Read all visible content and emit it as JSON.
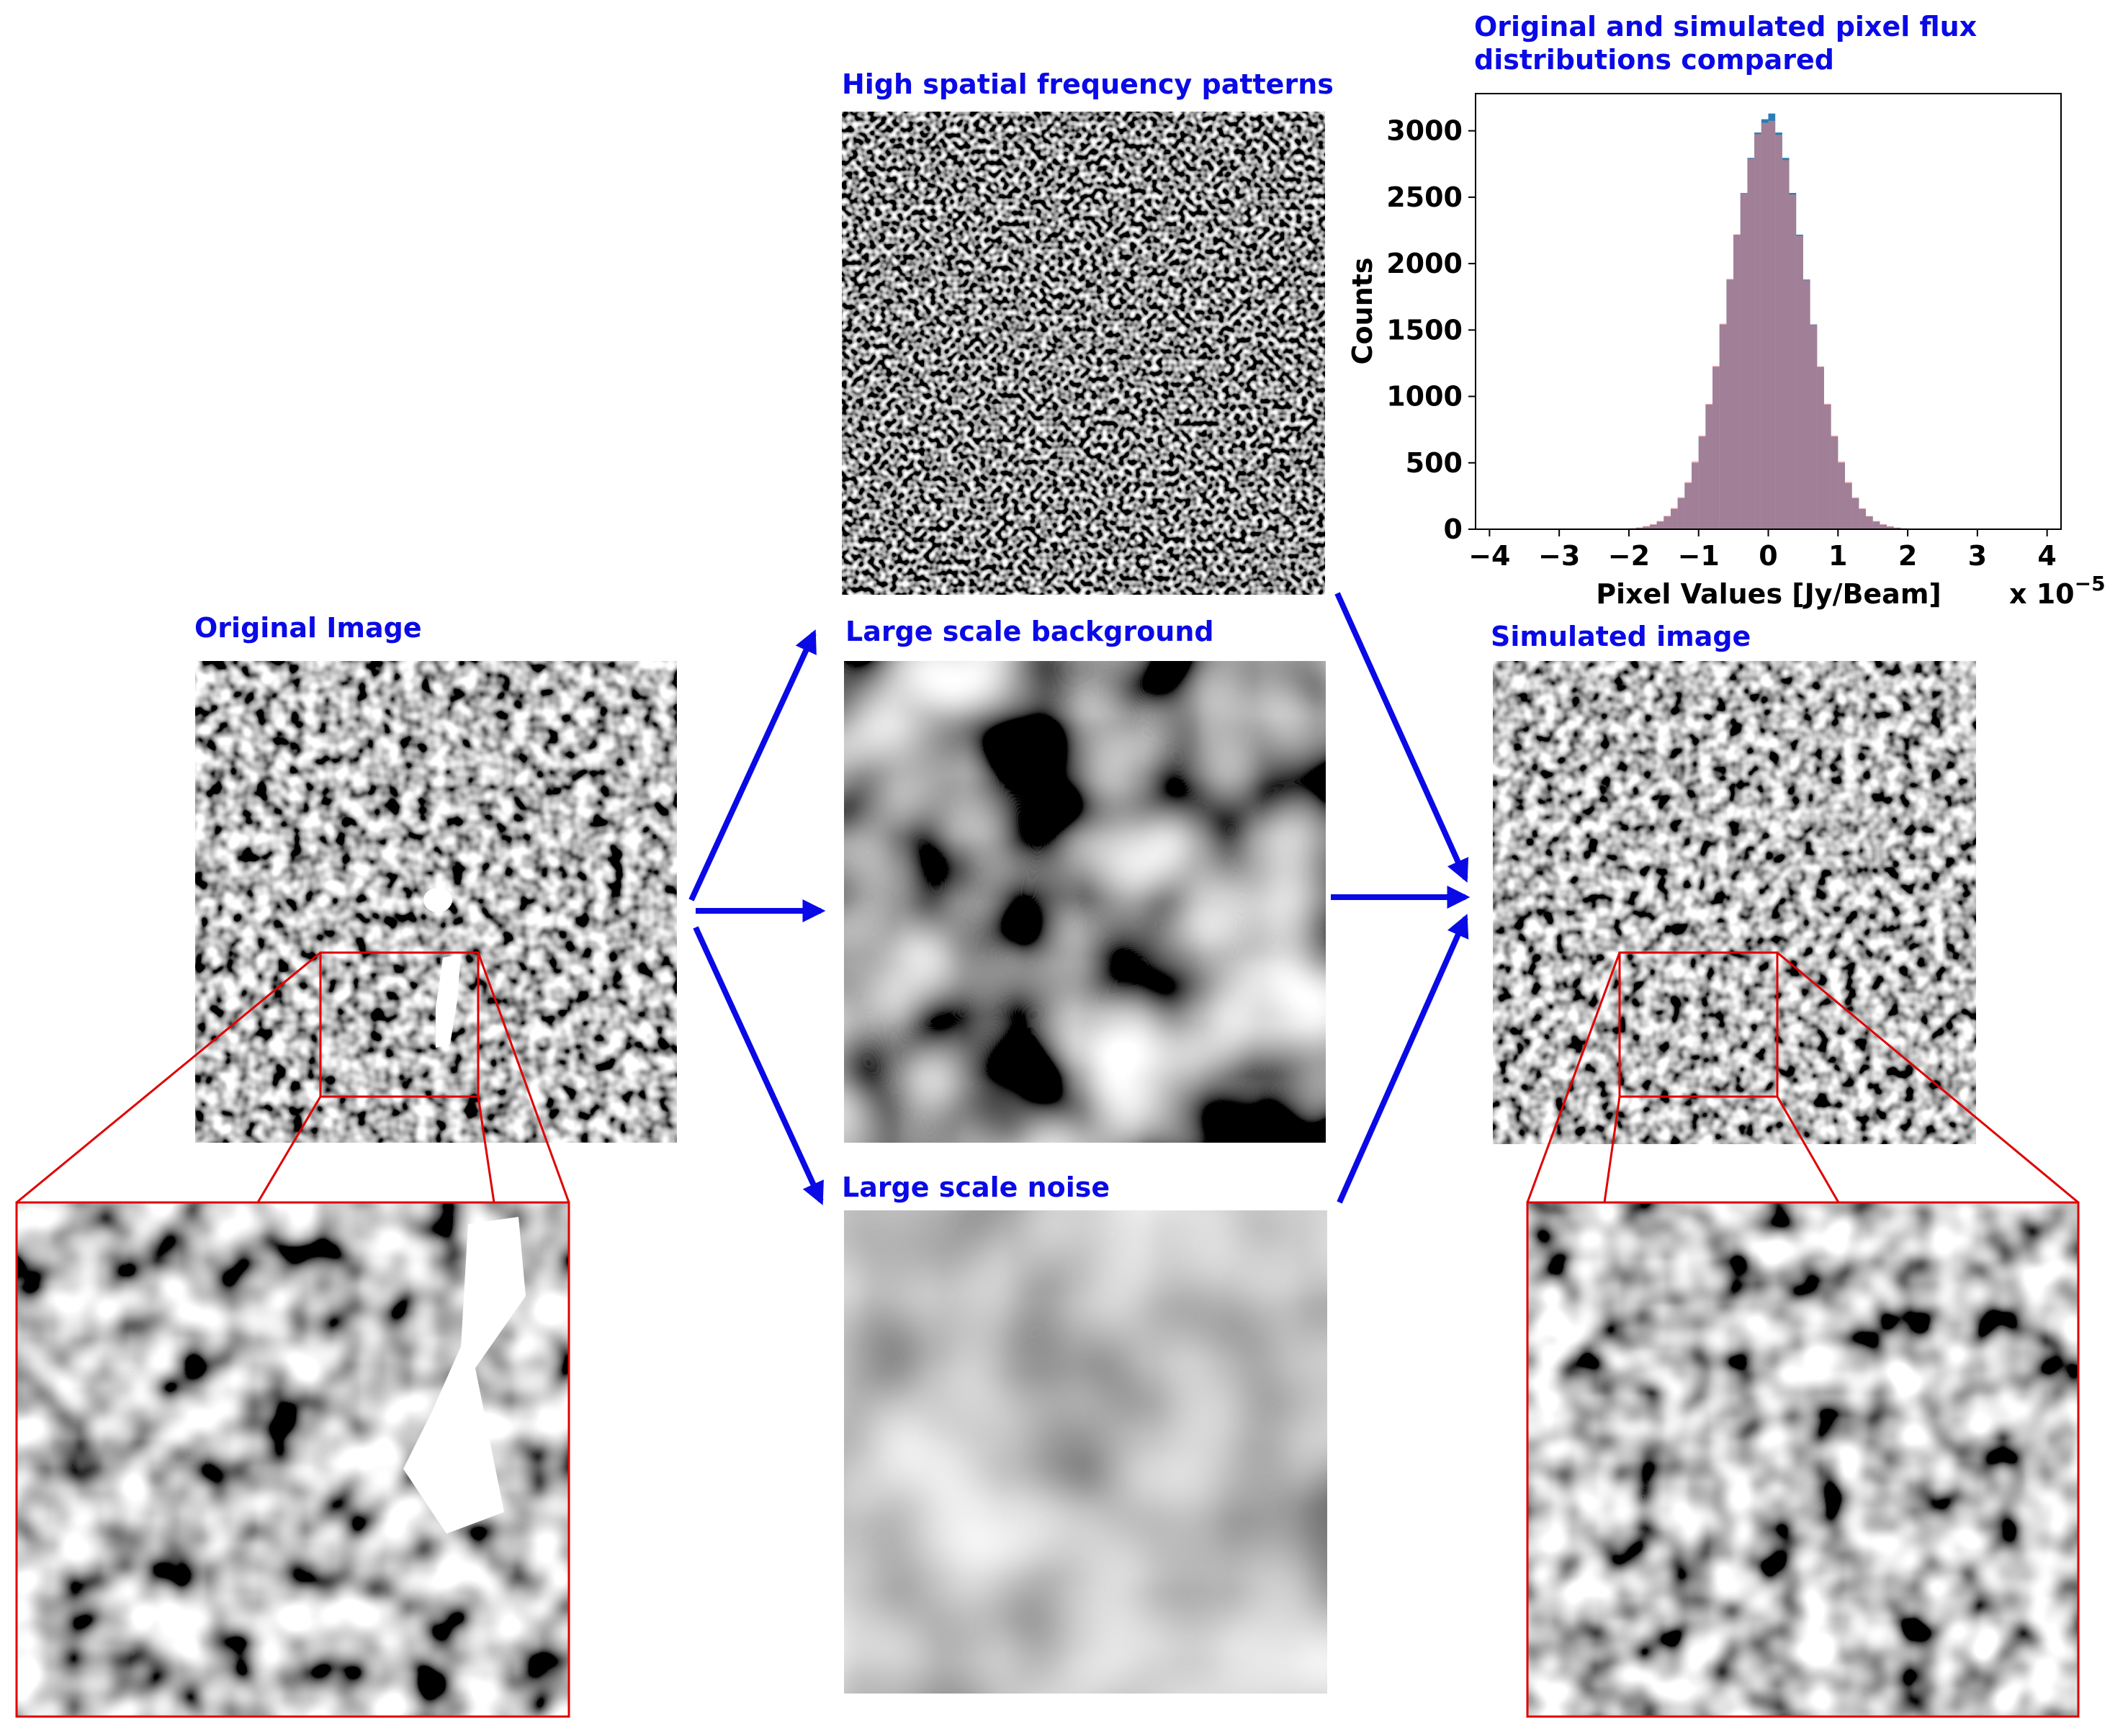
{
  "panels": {
    "original": {
      "title": "Original Image"
    },
    "high_freq": {
      "title": "High spatial frequency patterns"
    },
    "background": {
      "title": "Large scale background"
    },
    "noise": {
      "title": "Large scale noise"
    },
    "simulated": {
      "title": "Simulated image"
    }
  },
  "chart_data": {
    "type": "histogram",
    "title": [
      "Original and simulated pixel flux",
      "distributions compared"
    ],
    "xlabel": "Pixel Values [Jy/Beam]",
    "ylabel": "Counts",
    "offset_base": "x 10",
    "offset_exponent": "−5",
    "bins": [
      -2.0,
      -1.9,
      -1.8,
      -1.7,
      -1.6,
      -1.5,
      -1.4,
      -1.3,
      -1.2,
      -1.1,
      -1.0,
      -0.9,
      -0.8,
      -0.7,
      -0.6,
      -0.5,
      -0.4,
      -0.3,
      -0.2,
      -0.1,
      0.0,
      0.1,
      0.2,
      0.3,
      0.4,
      0.5,
      0.6,
      0.7,
      0.8,
      0.9,
      1.0,
      1.1,
      1.2,
      1.3,
      1.4,
      1.5,
      1.6,
      1.7,
      1.8,
      1.9,
      2.0
    ],
    "series": [
      {
        "color": "#1f77b4",
        "values": [
          6,
          11,
          20,
          34,
          58,
          96,
          153,
          234,
          348,
          501,
          698,
          939,
          1223,
          1542,
          1880,
          2218,
          2532,
          2796,
          2987,
          3087,
          3130,
          2987,
          2796,
          2532,
          2218,
          1880,
          1542,
          1223,
          939,
          698,
          501,
          348,
          234,
          153,
          96,
          58,
          34,
          20,
          11,
          6
        ]
      },
      {
        "color": "#f08080",
        "values": [
          8,
          14,
          24,
          38,
          62,
          102,
          160,
          241,
          356,
          512,
          705,
          944,
          1230,
          1548,
          1885,
          2220,
          2530,
          2790,
          2975,
          3060,
          3075,
          2970,
          2780,
          2520,
          2210,
          1875,
          1540,
          1225,
          945,
          705,
          510,
          356,
          240,
          158,
          100,
          62,
          38,
          22,
          13,
          7
        ]
      }
    ],
    "xlim": [
      -4.2,
      4.2
    ],
    "xticks": [
      {
        "value": -4,
        "label": "−4"
      },
      {
        "value": -3,
        "label": "−3"
      },
      {
        "value": -2,
        "label": "−2"
      },
      {
        "value": -1,
        "label": "−1"
      },
      0,
      1,
      2,
      3,
      4
    ],
    "ylim": [
      0,
      3280
    ],
    "yticks": [
      0,
      500,
      1000,
      1500,
      2000,
      2500,
      3000
    ]
  }
}
